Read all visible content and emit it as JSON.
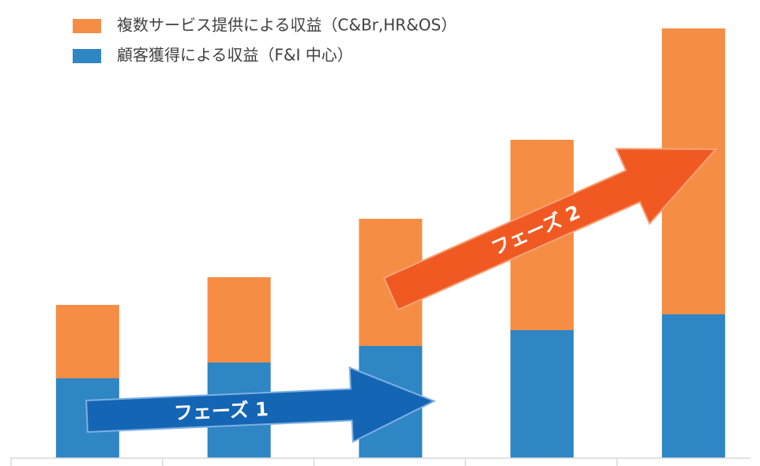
{
  "chart_data": {
    "type": "bar",
    "stacked": true,
    "categories": [
      null,
      null,
      null,
      null,
      null
    ],
    "series": [
      {
        "name": "顧客獲得による収益（F&I 中心）",
        "color": "#2e86c4",
        "values": [
          101,
          121,
          142,
          162,
          182
        ]
      },
      {
        "name": "複数サービス提供による収益（C&Br,HR&OS）",
        "color": "#f58d45",
        "values": [
          93,
          108,
          161,
          241,
          362
        ]
      }
    ],
    "ylim": [
      0,
      544
    ],
    "annotations": [
      "フェーズ 1",
      "フェーズ 2"
    ]
  }
}
